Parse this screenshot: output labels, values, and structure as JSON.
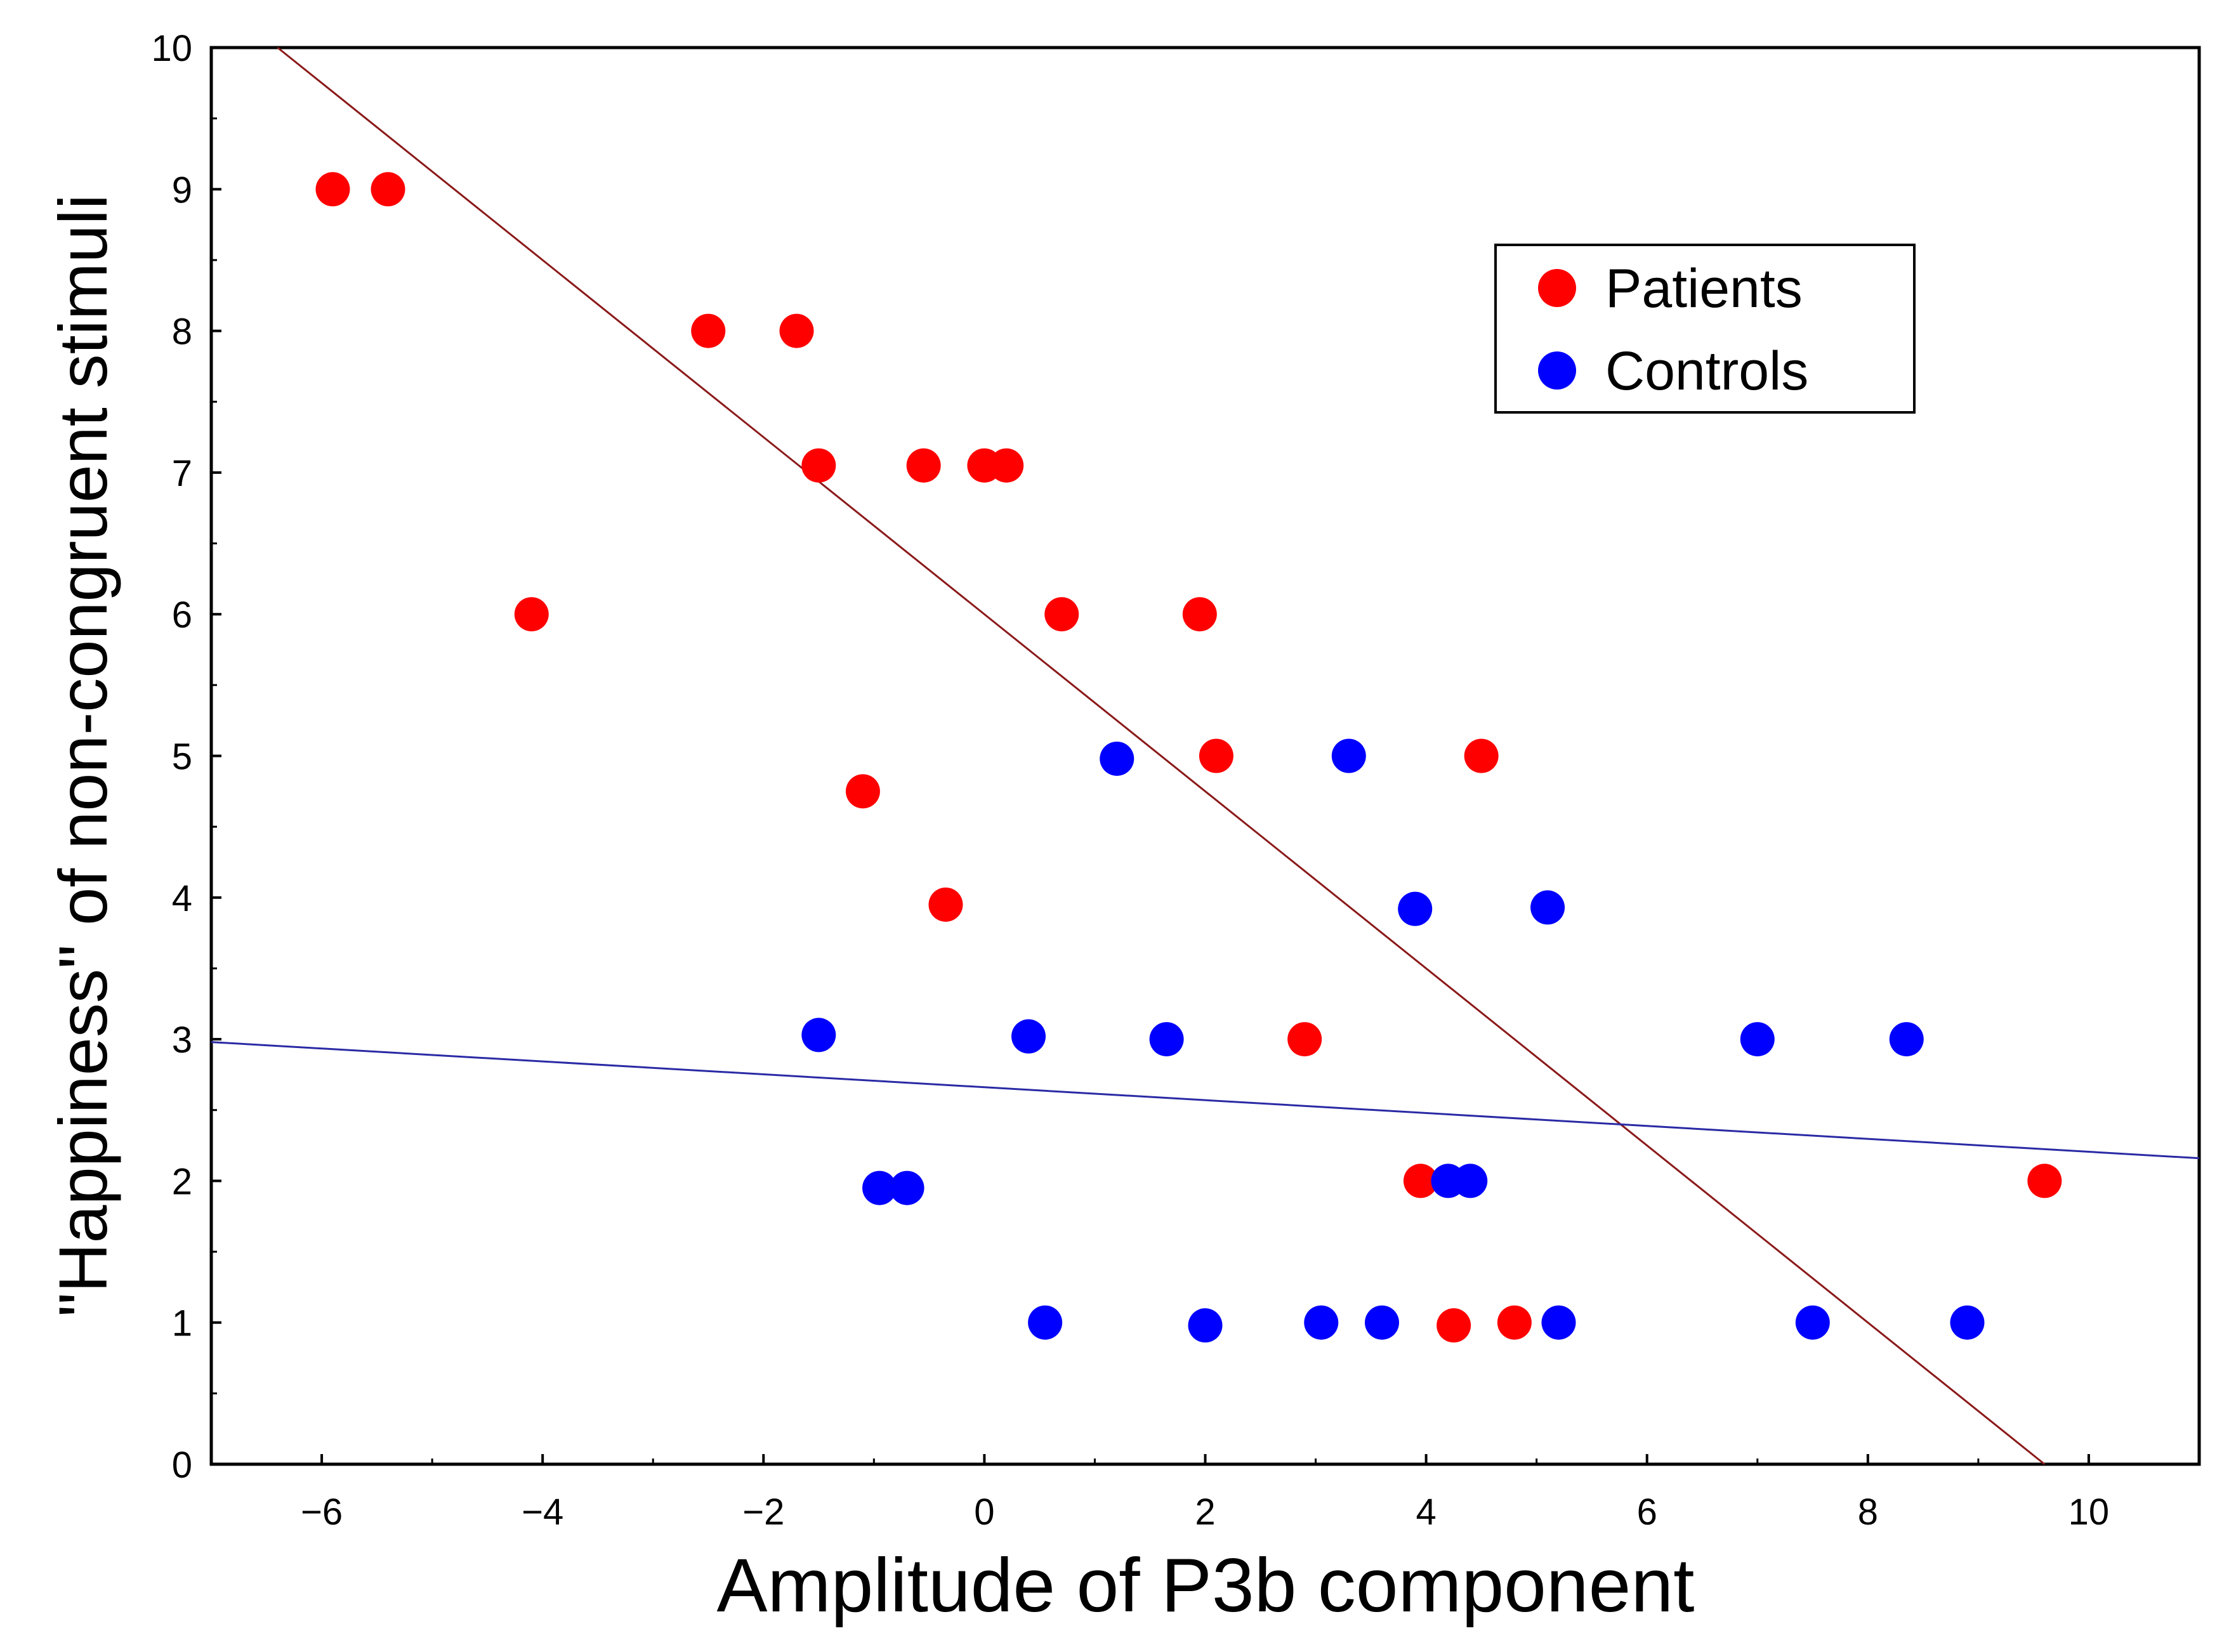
{
  "chart_data": {
    "type": "scatter",
    "xlabel": "Amplitude of P3b component",
    "ylabel": "\"Happiness\" of non-congruent stimuli",
    "xlim": [
      -7,
      11
    ],
    "ylim": [
      0,
      10
    ],
    "xticks": [
      -6,
      -4,
      -2,
      0,
      2,
      4,
      6,
      8,
      10
    ],
    "yticks": [
      0,
      1,
      2,
      3,
      4,
      5,
      6,
      7,
      8,
      9,
      10
    ],
    "grid": false,
    "legend_position": "top-right",
    "series": [
      {
        "name": "Patients",
        "color": "#ff0000",
        "points": [
          [
            -5.9,
            9
          ],
          [
            -5.4,
            9
          ],
          [
            -4.1,
            6
          ],
          [
            -2.5,
            8
          ],
          [
            -1.7,
            8
          ],
          [
            -1.5,
            7.05
          ],
          [
            -1.1,
            4.75
          ],
          [
            -0.55,
            7.05
          ],
          [
            -0.35,
            3.95
          ],
          [
            0,
            7.05
          ],
          [
            0.2,
            7.05
          ],
          [
            0.7,
            6
          ],
          [
            1.95,
            6
          ],
          [
            2.1,
            5
          ],
          [
            2.9,
            3
          ],
          [
            3.95,
            2
          ],
          [
            4.25,
            0.98
          ],
          [
            4.5,
            5
          ],
          [
            4.8,
            1
          ],
          [
            9.6,
            2
          ]
        ],
        "fit_line": {
          "color": "#8b1a1a",
          "from": [
            -6.4,
            10
          ],
          "to": [
            9.6,
            0
          ]
        }
      },
      {
        "name": "Controls",
        "color": "#0000ff",
        "points": [
          [
            -1.5,
            3.03
          ],
          [
            -0.95,
            1.95
          ],
          [
            -0.7,
            1.95
          ],
          [
            0.4,
            3.02
          ],
          [
            0.55,
            1
          ],
          [
            1.2,
            4.98
          ],
          [
            1.65,
            3
          ],
          [
            2,
            0.98
          ],
          [
            3.05,
            1
          ],
          [
            3.3,
            5
          ],
          [
            3.6,
            1
          ],
          [
            3.9,
            3.92
          ],
          [
            4.2,
            2
          ],
          [
            4.4,
            2
          ],
          [
            5.1,
            3.93
          ],
          [
            5.2,
            1
          ],
          [
            7,
            3
          ],
          [
            7.5,
            1
          ],
          [
            8.35,
            3
          ],
          [
            8.9,
            1
          ]
        ],
        "fit_line": {
          "color": "#2a2aa5",
          "from": [
            -7,
            2.98
          ],
          "to": [
            11,
            2.16
          ]
        }
      }
    ]
  }
}
